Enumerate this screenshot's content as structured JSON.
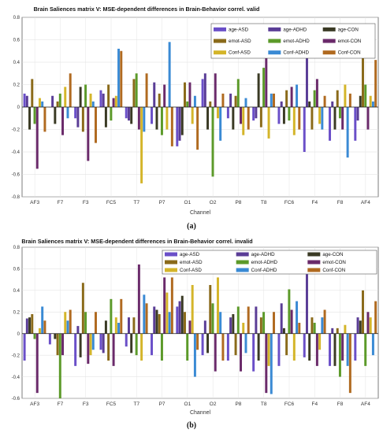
{
  "colors": {
    "age_ASD": "#6a4fc8",
    "age_ADHD": "#5a3d96",
    "age_CON": "#3a3a24",
    "emot_ASD": "#8a6a1a",
    "emot_ADHD": "#5c9a2a",
    "emot_CON": "#6a2a6a",
    "conf_ASD": "#d4b52a",
    "conf_ADHD": "#3a8ad4",
    "conf_CON": "#b06a20"
  },
  "chart_data": [
    {
      "type": "bar",
      "title": "Brain Saliences matrix V: MSE-dependent differences in Brain-Behavior correl. valid",
      "xlabel": "Channel",
      "ylabel": "",
      "ylim": [
        -0.8,
        0.8
      ],
      "yticks": [
        "0.8",
        "0.6",
        "0.4",
        "0.2",
        "0",
        "-0.2",
        "-0.4",
        "-0.6",
        "-0.8"
      ],
      "categories": [
        "AF3",
        "F7",
        "F3",
        "FC5",
        "T7",
        "P7",
        "O1",
        "O2",
        "P8",
        "T8",
        "FC6",
        "F4",
        "F8",
        "AF4"
      ],
      "tick_labels": [
        "AF3",
        "F7",
        "F3",
        "FC5",
        "T7",
        "P7",
        "O1",
        "O2",
        "P8",
        "T8",
        "FC6",
        "F4",
        "F8",
        "AF4"
      ],
      "subfig_label": "(a)",
      "legend_position": "top-right",
      "grid": true,
      "series": [
        {
          "name": "age-ASD",
          "color_key": "age_ASD",
          "values": [
            0.12,
            0.0,
            -0.1,
            0.15,
            -0.1,
            -0.15,
            -0.35,
            0.25,
            -0.1,
            -0.12,
            -0.15,
            -0.4,
            -0.3,
            -0.3
          ]
        },
        {
          "name": "age-ADHD",
          "color_key": "age_ADHD",
          "values": [
            0.1,
            0.1,
            -0.18,
            0.12,
            -0.12,
            0.22,
            -0.3,
            0.3,
            0.12,
            -0.1,
            0.05,
            0.45,
            0.05,
            -0.12
          ]
        },
        {
          "name": "age-CON",
          "color_key": "age_CON",
          "values": [
            -0.2,
            -0.15,
            0.18,
            -0.18,
            -0.15,
            -0.2,
            -0.25,
            -0.2,
            -0.2,
            0.3,
            -0.15,
            0.05,
            -0.2,
            0.1
          ]
        },
        {
          "name": "emot-ASD",
          "color_key": "emot_ASD",
          "values": [
            0.25,
            0.05,
            -0.22,
            0.2,
            0.25,
            0.12,
            0.22,
            0.05,
            0.1,
            -0.18,
            0.15,
            -0.2,
            0.15,
            0.48
          ]
        },
        {
          "name": "emot-ADHD",
          "color_key": "emot_ADHD",
          "values": [
            -0.15,
            0.12,
            0.2,
            -0.12,
            0.3,
            -0.25,
            0.05,
            -0.62,
            0.25,
            0.35,
            -0.12,
            0.15,
            -0.1,
            0.2
          ]
        },
        {
          "name": "emot-CON",
          "color_key": "emot_CON",
          "values": [
            -0.55,
            -0.25,
            -0.48,
            0.08,
            -0.2,
            0.2,
            0.22,
            0.3,
            -0.15,
            0.55,
            0.18,
            0.25,
            -0.2,
            -0.2
          ]
        },
        {
          "name": "Conf-ASD",
          "color_key": "conf_ASD",
          "values": [
            0.08,
            0.18,
            0.12,
            0.1,
            -0.68,
            -0.2,
            -0.15,
            -0.1,
            -0.25,
            -0.28,
            -0.25,
            -0.15,
            0.2,
            0.1
          ]
        },
        {
          "name": "Conf-ADHD",
          "color_key": "conf_ADHD",
          "values": [
            0.05,
            -0.1,
            0.05,
            0.52,
            -0.22,
            0.58,
            0.1,
            -0.3,
            0.08,
            0.12,
            0.2,
            -0.2,
            -0.45,
            0.05
          ]
        },
        {
          "name": "Conf-CON",
          "color_key": "conf_CON",
          "values": [
            -0.22,
            0.3,
            -0.32,
            0.5,
            0.3,
            -0.35,
            -0.38,
            0.12,
            -0.2,
            0.12,
            -0.2,
            0.1,
            0.12,
            0.42
          ]
        }
      ]
    },
    {
      "type": "bar",
      "title": "Brain Saliences matrix V: MSE-dependent differences in Brain-Behavior correl. invalid",
      "xlabel": "Channel",
      "ylabel": "",
      "ylim": [
        -0.6,
        0.8
      ],
      "yticks": [
        "0.8",
        "0.6",
        "0.4",
        "0.2",
        "0",
        "-0.2",
        "-0.4",
        "-0.6"
      ],
      "categories": [
        "AF3",
        "F7",
        "F3",
        "FC5",
        "T7",
        "P7",
        "O1",
        "O2",
        "P8",
        "T8",
        "FC6",
        "F4",
        "F8",
        "AF4"
      ],
      "tick_labels": [
        "AF3",
        "F7",
        "F3",
        "FC5",
        "T7",
        "P7",
        "O1",
        "O2",
        "P8",
        "T8",
        "FC6",
        "F4",
        "F8",
        "AF4"
      ],
      "subfig_label": "(b)",
      "legend_position": "top-right",
      "grid": true,
      "series": [
        {
          "name": "age-ASD",
          "color_key": "age_ASD",
          "values": [
            -0.25,
            -0.1,
            -0.3,
            -0.15,
            -0.12,
            -0.2,
            0.25,
            -0.2,
            -0.25,
            -0.35,
            -0.3,
            -0.22,
            -0.3,
            -0.25
          ]
        },
        {
          "name": "age-ADHD",
          "color_key": "age_ADHD",
          "values": [
            0.14,
            0.0,
            0.07,
            -0.18,
            0.15,
            0.25,
            0.3,
            0.12,
            0.15,
            0.25,
            0.28,
            0.55,
            0.05,
            0.15
          ]
        },
        {
          "name": "age-CON",
          "color_key": "age_CON",
          "values": [
            0.15,
            -0.05,
            -0.22,
            0.12,
            -0.18,
            0.22,
            0.35,
            -0.18,
            0.18,
            -0.25,
            0.05,
            -0.25,
            -0.3,
            0.12
          ]
        },
        {
          "name": "emot-ASD",
          "color_key": "emot_ASD",
          "values": [
            0.18,
            -0.2,
            0.47,
            -0.25,
            0.15,
            0.18,
            0.2,
            0.45,
            -0.2,
            0.15,
            -0.2,
            0.15,
            0.05,
            0.4
          ]
        },
        {
          "name": "emot-ADHD",
          "color_key": "emot_ADHD",
          "values": [
            -0.05,
            -0.6,
            0.2,
            0.32,
            -0.2,
            -0.25,
            -0.25,
            0.28,
            0.25,
            0.2,
            0.41,
            0.1,
            -0.4,
            -0.3
          ]
        },
        {
          "name": "emot-CON",
          "color_key": "emot_CON",
          "values": [
            -0.55,
            -0.2,
            -0.28,
            -0.3,
            0.64,
            0.52,
            0.12,
            -0.35,
            -0.35,
            -0.55,
            0.22,
            -0.3,
            -0.25,
            0.2
          ]
        },
        {
          "name": "Conf-ASD",
          "color_key": "conf_ASD",
          "values": [
            0.05,
            0.2,
            -0.2,
            0.15,
            -0.25,
            0.38,
            0.45,
            0.52,
            0.1,
            -0.3,
            -0.25,
            -0.15,
            0.08,
            0.15
          ]
        },
        {
          "name": "Conf-ADHD",
          "color_key": "conf_ADHD",
          "values": [
            0.25,
            0.12,
            -0.15,
            0.1,
            0.36,
            0.2,
            -0.4,
            0.2,
            -0.18,
            -0.56,
            0.3,
            0.15,
            -0.3,
            -0.2
          ]
        },
        {
          "name": "Conf-CON",
          "color_key": "conf_CON",
          "values": [
            0.12,
            0.22,
            0.2,
            0.32,
            0.28,
            0.52,
            -0.15,
            -0.25,
            0.25,
            0.2,
            0.1,
            0.22,
            -0.55,
            0.3
          ]
        }
      ]
    }
  ]
}
